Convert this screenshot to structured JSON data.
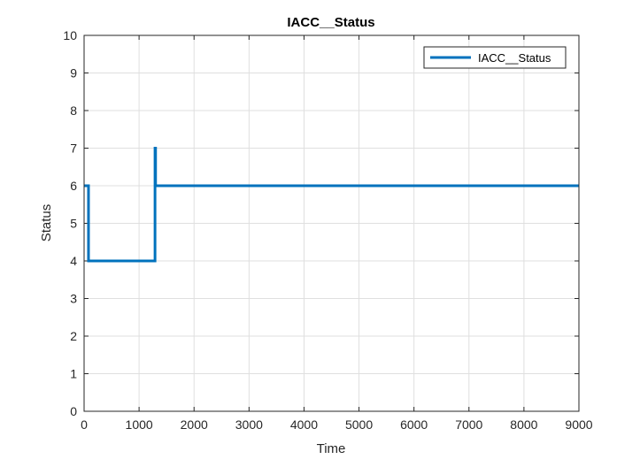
{
  "chart_data": {
    "type": "line",
    "title": "IACC__Status",
    "xlabel": "Time",
    "ylabel": "Status",
    "xlim": [
      0,
      9000
    ],
    "ylim": [
      0,
      10
    ],
    "xticks": [
      0,
      1000,
      2000,
      3000,
      4000,
      5000,
      6000,
      7000,
      8000,
      9000
    ],
    "yticks": [
      0,
      1,
      2,
      3,
      4,
      5,
      6,
      7,
      8,
      9,
      10
    ],
    "grid": true,
    "legend": {
      "position": "top-right",
      "entries": [
        "IACC__Status"
      ]
    },
    "series": [
      {
        "name": "IACC__Status",
        "color": "#0072BD",
        "step": true,
        "points": [
          [
            0,
            6
          ],
          [
            80,
            6
          ],
          [
            80,
            4
          ],
          [
            1290,
            4
          ],
          [
            1290,
            7
          ],
          [
            1300,
            7
          ],
          [
            1300,
            6
          ],
          [
            9000,
            6
          ]
        ]
      }
    ]
  }
}
